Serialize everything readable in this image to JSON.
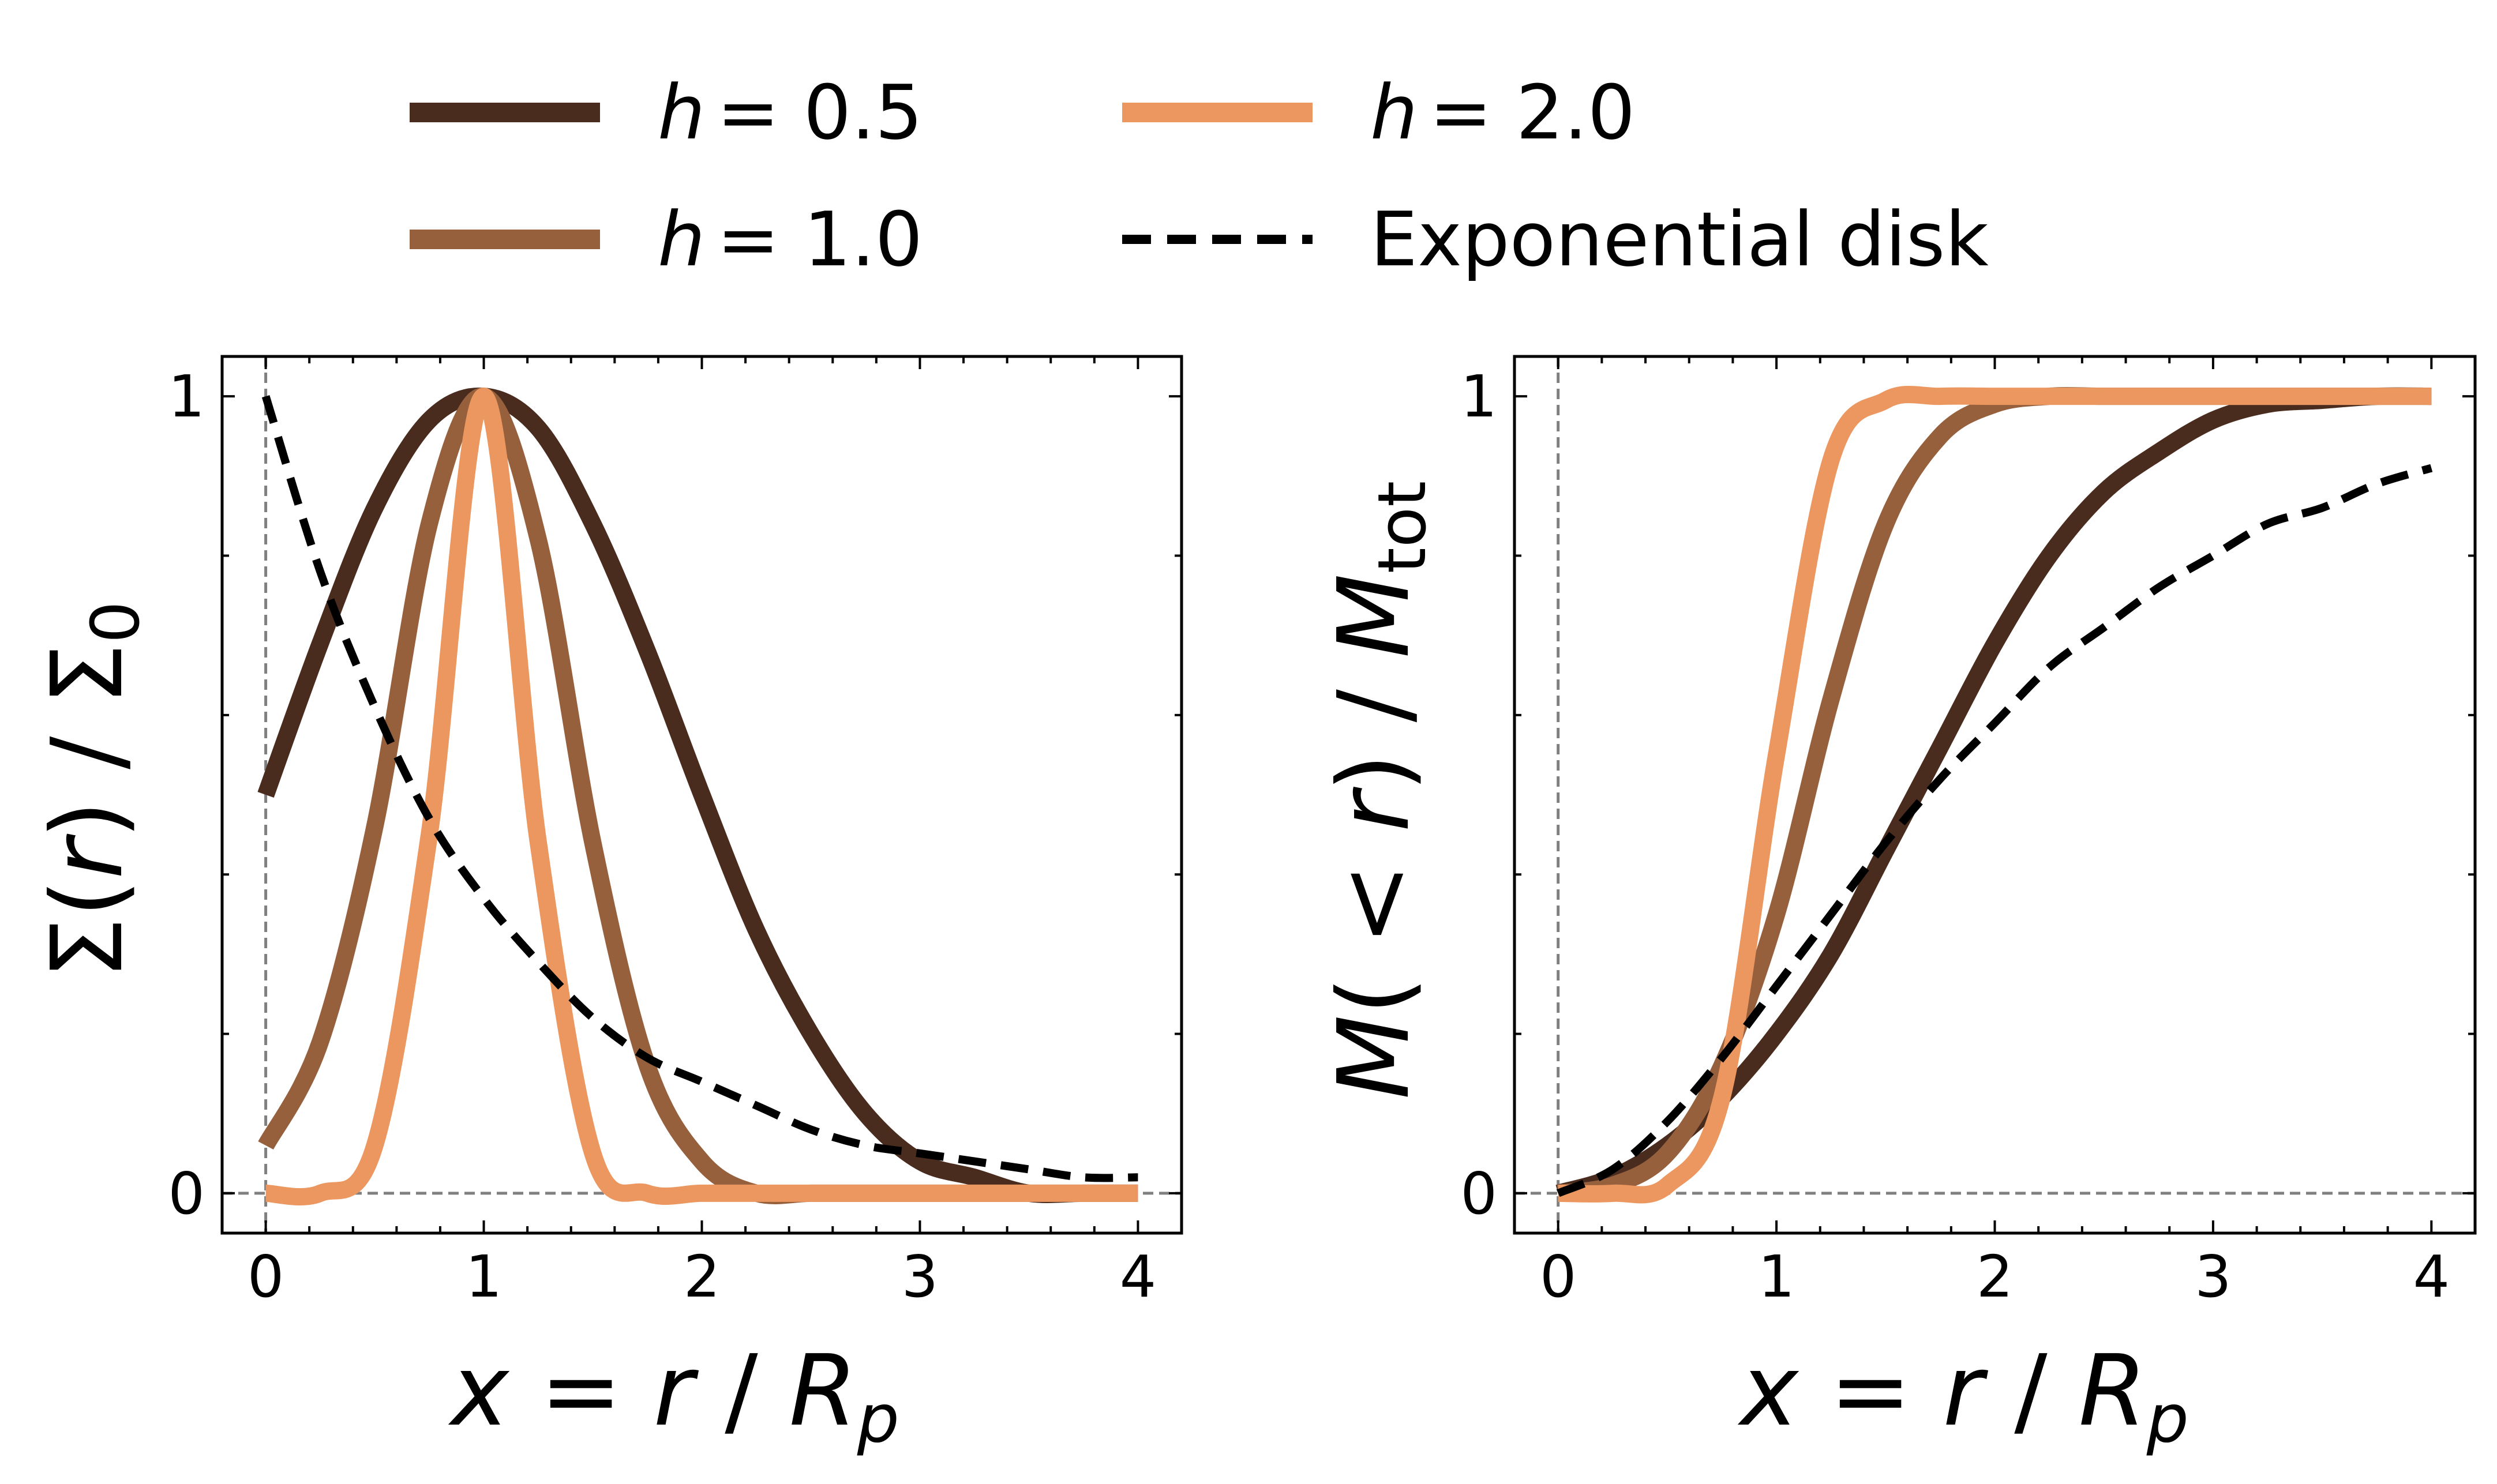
{
  "colors": {
    "h05": "#4a2c1f",
    "h10": "#96603d",
    "h20": "#ec9760",
    "exp": "#000000",
    "guide": "#808080"
  },
  "legend": {
    "h05": {
      "var": "h",
      "rest": "= 0.5"
    },
    "h10": {
      "var": "h",
      "rest": "= 1.0"
    },
    "h20": {
      "var": "h",
      "rest": "= 2.0"
    },
    "exp": {
      "label": "Exponential disk"
    }
  },
  "chart_data": [
    {
      "type": "line",
      "name": "surface-density",
      "xlabel": {
        "var1": "x",
        "eq": " = ",
        "var2": "r",
        "slash": " / ",
        "var3": "R",
        "sub": "p"
      },
      "ylabel": {
        "pre": "Σ(",
        "var": "r",
        "post": ")  /  Σ",
        "sub": "0"
      },
      "xlim": [
        -0.2,
        4.2
      ],
      "ylim": [
        -0.05,
        1.05
      ],
      "xticks": [
        "0",
        "1",
        "2",
        "3",
        "4"
      ],
      "yticks": [
        "0",
        "1"
      ],
      "series": [
        {
          "name": "h = 0.5",
          "h": 0.5,
          "x": [
            0,
            0.25,
            0.5,
            0.75,
            1,
            1.25,
            1.5,
            1.75,
            2,
            2.25,
            2.5,
            2.75,
            3,
            3.25,
            3.5,
            3.75,
            4
          ],
          "values": [
            0.5,
            0.69,
            0.86,
            0.97,
            1.0,
            0.96,
            0.84,
            0.68,
            0.5,
            0.33,
            0.2,
            0.1,
            0.04,
            0.02,
            0.0,
            0.0,
            0.0
          ]
        },
        {
          "name": "h = 1.0",
          "h": 1.0,
          "x": [
            0,
            0.25,
            0.5,
            0.75,
            1,
            1.25,
            1.5,
            1.75,
            2,
            2.25,
            2.5,
            2.75,
            3,
            3.25,
            3.5,
            3.75,
            4
          ],
          "values": [
            0.06,
            0.19,
            0.46,
            0.84,
            1.0,
            0.82,
            0.44,
            0.16,
            0.04,
            0.0,
            0.0,
            0.0,
            0.0,
            0.0,
            0.0,
            0.0,
            0.0
          ]
        },
        {
          "name": "h = 2.0",
          "h": 2.0,
          "x": [
            0,
            0.25,
            0.5,
            0.75,
            1,
            1.25,
            1.5,
            1.75,
            2,
            2.25,
            2.5,
            2.75,
            3,
            3.25,
            3.5,
            3.75,
            4
          ],
          "values": [
            0.0,
            0.0,
            0.06,
            0.45,
            1.0,
            0.44,
            0.05,
            0.0,
            0.0,
            0.0,
            0.0,
            0.0,
            0.0,
            0.0,
            0.0,
            0.0,
            0.0
          ]
        },
        {
          "name": "Exponential disk",
          "style": "dashed",
          "x": [
            0,
            0.25,
            0.5,
            0.75,
            1,
            1.25,
            1.5,
            1.75,
            2,
            2.25,
            2.5,
            2.75,
            3,
            3.25,
            3.5,
            3.75,
            4
          ],
          "values": [
            1.0,
            0.78,
            0.61,
            0.47,
            0.37,
            0.29,
            0.22,
            0.17,
            0.14,
            0.11,
            0.08,
            0.06,
            0.05,
            0.04,
            0.03,
            0.02,
            0.02
          ]
        }
      ],
      "reference_lines": {
        "x": 0,
        "y": 0
      }
    },
    {
      "type": "line",
      "name": "enclosed-mass",
      "xlabel": {
        "var1": "x",
        "eq": " = ",
        "var2": "r",
        "slash": " / ",
        "var3": "R",
        "sub": "p"
      },
      "ylabel": {
        "var1": "M",
        "mid": "( < ",
        "var2": "r",
        "post": ")  /  ",
        "var3": "M",
        "sub": "tot"
      },
      "xlim": [
        -0.2,
        4.2
      ],
      "ylim": [
        -0.05,
        1.05
      ],
      "xticks": [
        "0",
        "1",
        "2",
        "3",
        "4"
      ],
      "yticks": [
        "0",
        "1"
      ],
      "series": [
        {
          "name": "h = 0.5",
          "h": 0.5,
          "x": [
            0,
            0.25,
            0.5,
            0.75,
            1,
            1.25,
            1.5,
            1.75,
            2,
            2.25,
            2.5,
            2.75,
            3,
            3.25,
            3.5,
            3.75,
            4
          ],
          "values": [
            0.0,
            0.02,
            0.06,
            0.12,
            0.2,
            0.3,
            0.43,
            0.56,
            0.69,
            0.8,
            0.88,
            0.93,
            0.97,
            0.99,
            0.995,
            1.0,
            1.0
          ]
        },
        {
          "name": "h = 1.0",
          "h": 1.0,
          "x": [
            0,
            0.25,
            0.5,
            0.75,
            1,
            1.25,
            1.5,
            1.75,
            2,
            2.25,
            2.5,
            2.75,
            3,
            3.25,
            3.5,
            3.75,
            4
          ],
          "values": [
            0.0,
            0.01,
            0.05,
            0.16,
            0.35,
            0.62,
            0.84,
            0.95,
            0.99,
            1.0,
            1.0,
            1.0,
            1.0,
            1.0,
            1.0,
            1.0,
            1.0
          ]
        },
        {
          "name": "h = 2.0",
          "h": 2.0,
          "x": [
            0,
            0.25,
            0.5,
            0.75,
            1,
            1.25,
            1.5,
            1.75,
            2,
            2.25,
            2.5,
            2.75,
            3,
            3.25,
            3.5,
            3.75,
            4
          ],
          "values": [
            0.0,
            0.0,
            0.01,
            0.12,
            0.55,
            0.92,
            0.995,
            1.0,
            1.0,
            1.0,
            1.0,
            1.0,
            1.0,
            1.0,
            1.0,
            1.0,
            1.0
          ]
        },
        {
          "name": "Exponential disk",
          "style": "dashed",
          "x": [
            0,
            0.25,
            0.5,
            0.75,
            1,
            1.25,
            1.5,
            1.75,
            2,
            2.25,
            2.5,
            2.75,
            3,
            3.25,
            3.5,
            3.75,
            4
          ],
          "values": [
            0.0,
            0.03,
            0.09,
            0.17,
            0.26,
            0.35,
            0.44,
            0.52,
            0.59,
            0.66,
            0.71,
            0.76,
            0.8,
            0.84,
            0.86,
            0.89,
            0.91
          ]
        }
      ],
      "reference_lines": {
        "x": 0,
        "y": 0
      }
    }
  ]
}
